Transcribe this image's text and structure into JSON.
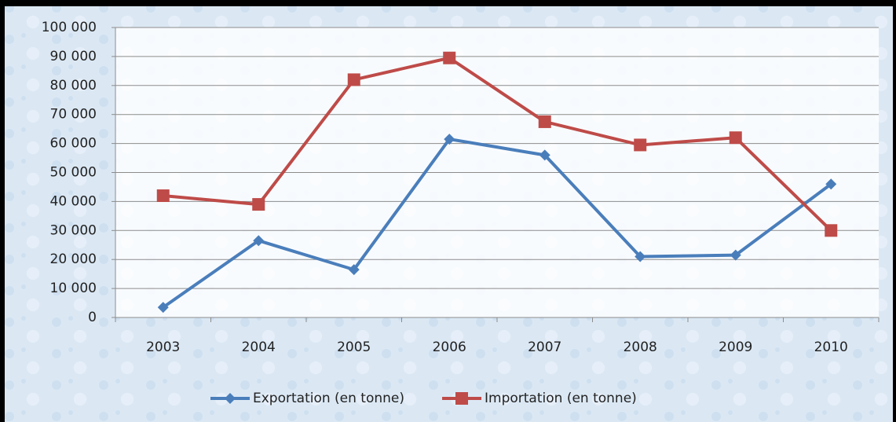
{
  "chart_data": {
    "type": "line",
    "categories": [
      "2003",
      "2004",
      "2005",
      "2006",
      "2007",
      "2008",
      "2009",
      "2010"
    ],
    "series": [
      {
        "name": "Exportation (en tonne)",
        "color": "#4a7ebb",
        "marker": "diamond",
        "values": [
          3500,
          26500,
          16500,
          61500,
          56000,
          21000,
          21500,
          46000
        ]
      },
      {
        "name": "Importation (en tonne)",
        "color": "#be4b48",
        "marker": "square",
        "values": [
          42000,
          39000,
          82000,
          89500,
          67500,
          59500,
          62000,
          30000
        ]
      }
    ],
    "ylim": [
      0,
      100000
    ],
    "yticks": [
      0,
      {
        "value": 10000,
        "label": "10 000"
      },
      {
        "value": 20000,
        "label": "20 000"
      },
      {
        "value": 30000,
        "label": "30 000"
      },
      {
        "value": 40000,
        "label": "40 000"
      },
      {
        "value": 50000,
        "label": "50 000"
      },
      {
        "value": 60000,
        "label": "60 000"
      },
      {
        "value": 70000,
        "label": "70 000"
      },
      {
        "value": 80000,
        "label": "80 000"
      },
      {
        "value": 90000,
        "label": "90 000"
      },
      {
        "value": 100000,
        "label": "100 000"
      }
    ],
    "grid": true,
    "legend": "bottom"
  }
}
